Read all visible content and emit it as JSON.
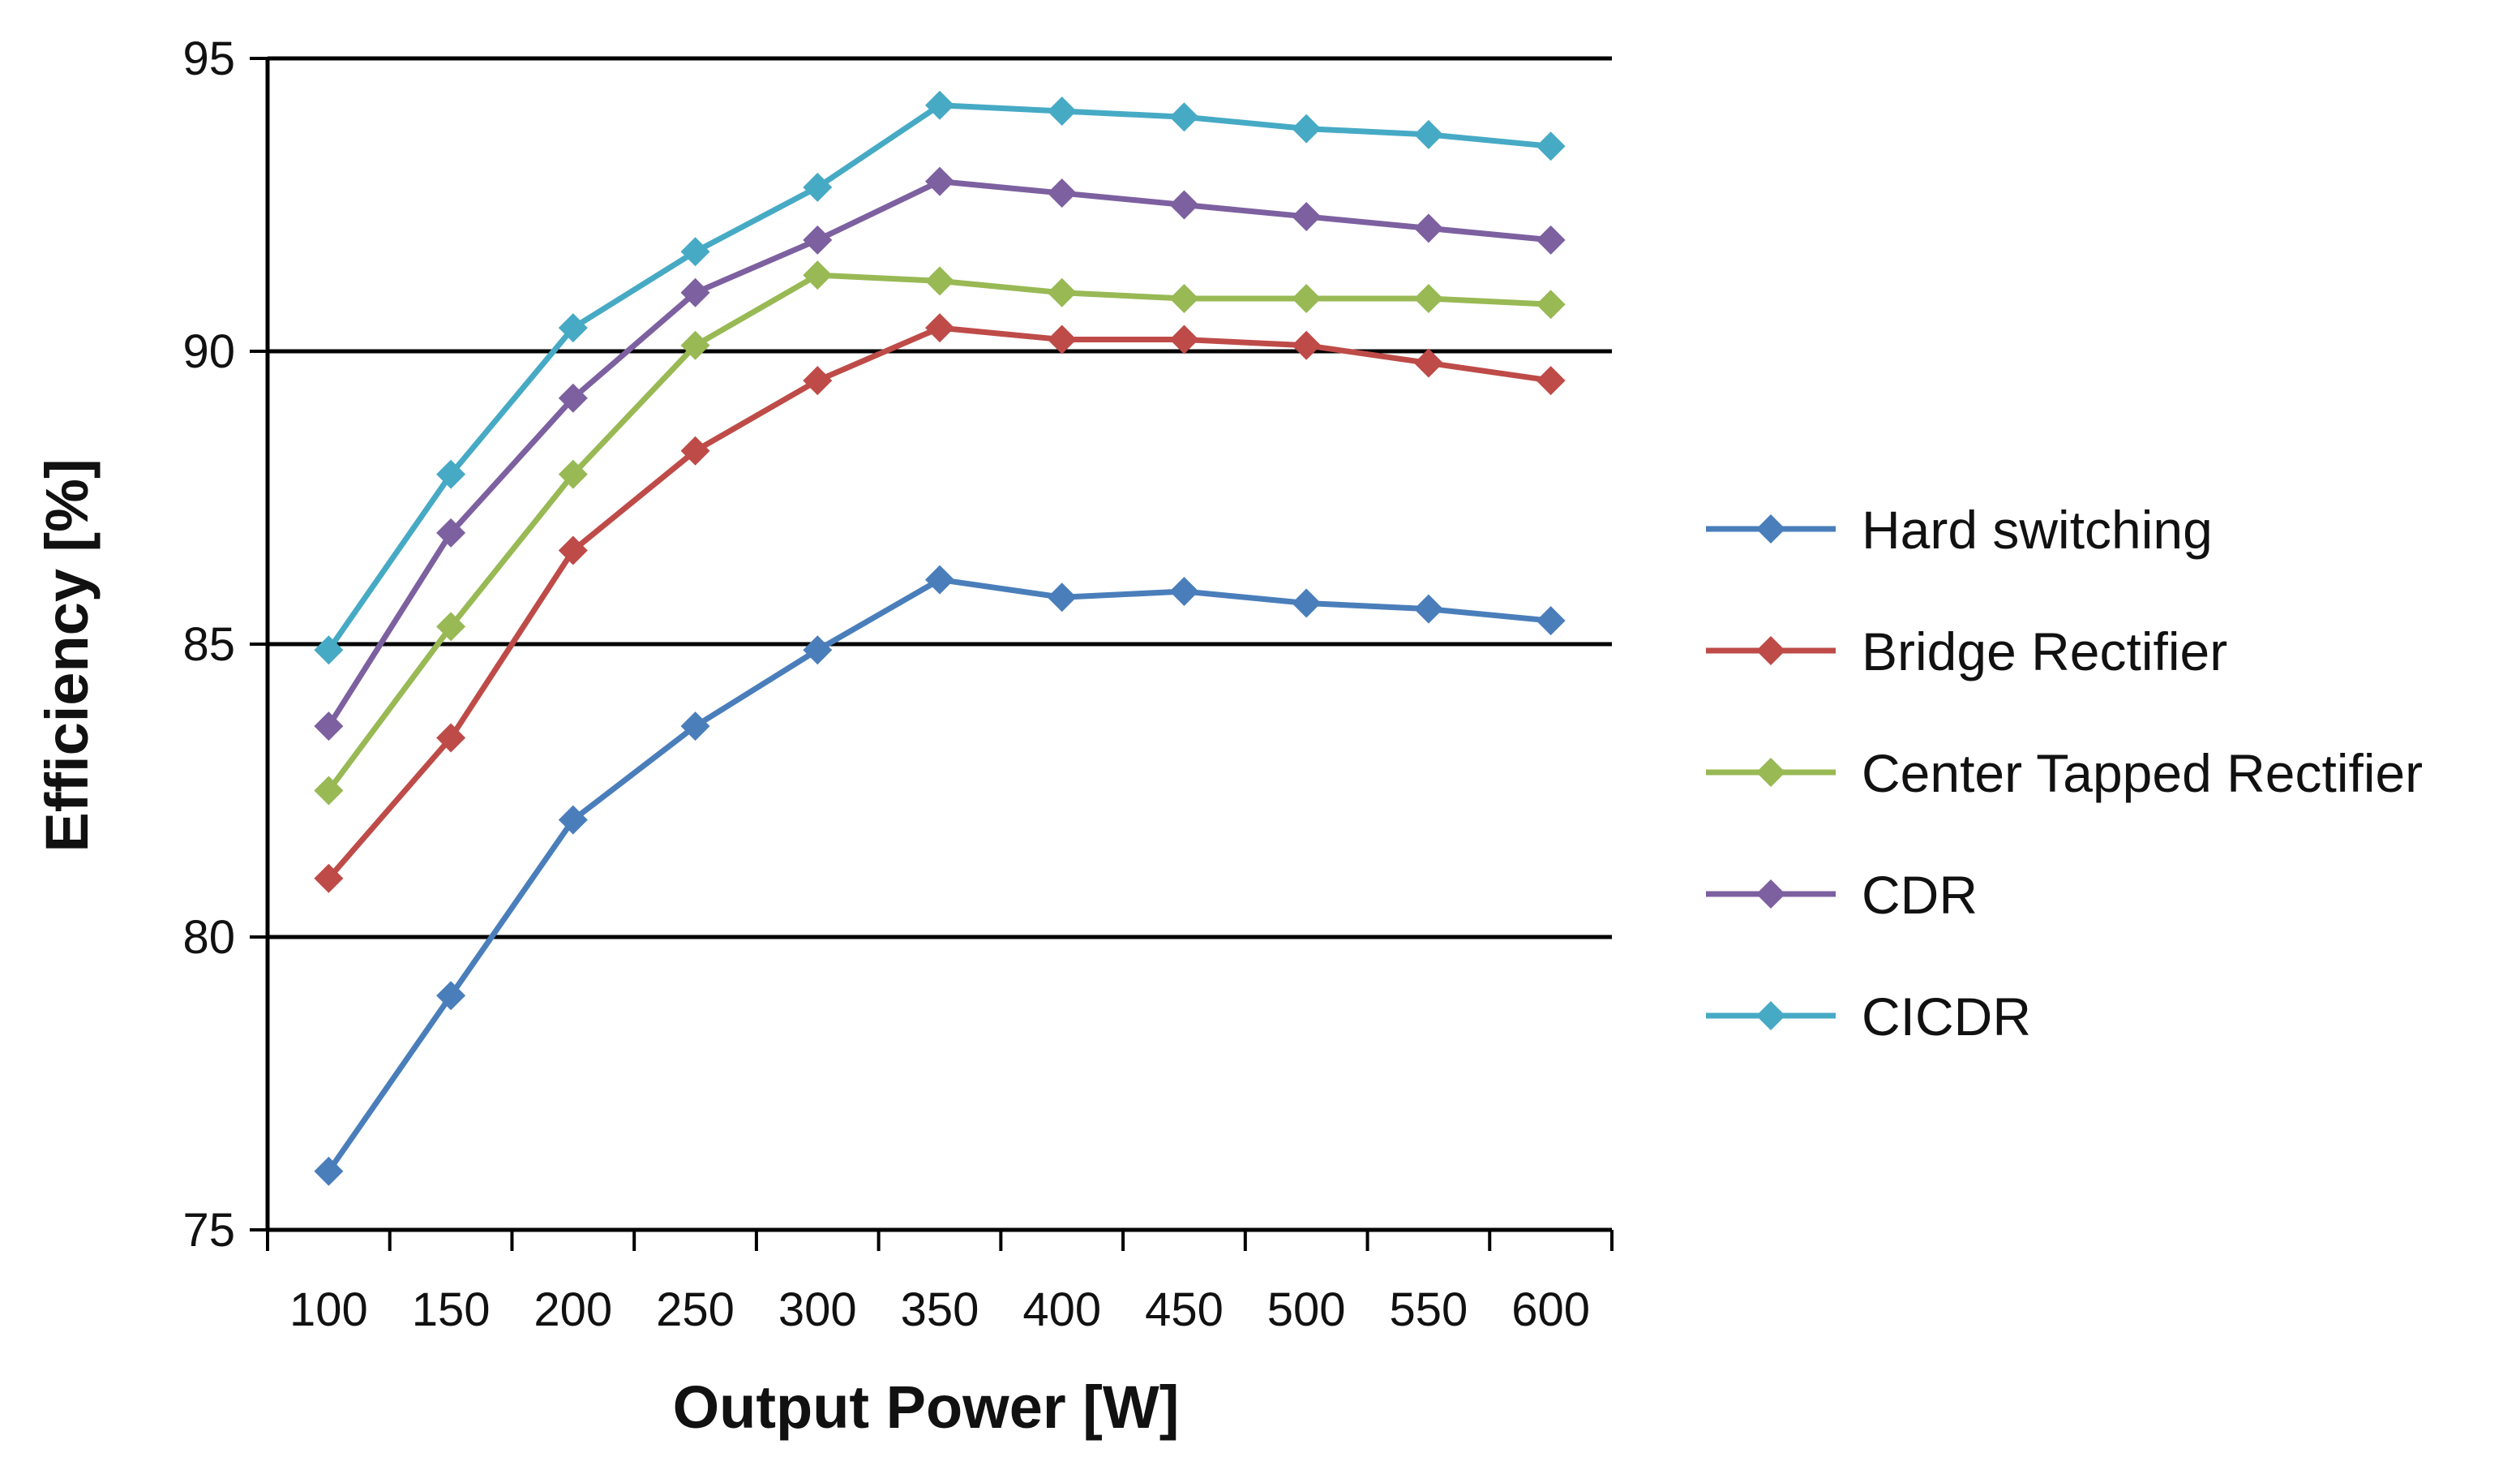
{
  "chart_data": {
    "type": "line",
    "title": "",
    "xlabel": "Output Power [W]",
    "ylabel": "Efficiency [%]",
    "categories": [
      "100",
      "150",
      "200",
      "250",
      "300",
      "350",
      "400",
      "450",
      "500",
      "550",
      "600"
    ],
    "ylim": [
      75,
      95
    ],
    "yticks": [
      "75",
      "80",
      "85",
      "90",
      "95"
    ],
    "grid": "horizontal",
    "legend_position": "right",
    "series": [
      {
        "name": "Hard switching",
        "color": "#4a7ebb",
        "values": [
          76.0,
          79.0,
          82.0,
          83.6,
          84.9,
          86.1,
          85.8,
          85.9,
          85.7,
          85.6,
          85.4
        ]
      },
      {
        "name": "Bridge Rectifier",
        "color": "#be4b48",
        "values": [
          81.0,
          83.4,
          86.6,
          88.3,
          89.5,
          90.4,
          90.2,
          90.2,
          90.1,
          89.8,
          89.5
        ]
      },
      {
        "name": "Center Tapped Rectifier",
        "color": "#98b954",
        "values": [
          82.5,
          85.3,
          87.9,
          90.1,
          91.3,
          91.2,
          91.0,
          90.9,
          90.9,
          90.9,
          90.8
        ]
      },
      {
        "name": "CDR",
        "color": "#7d60a0",
        "values": [
          83.6,
          86.9,
          89.2,
          91.0,
          91.9,
          92.9,
          92.7,
          92.5,
          92.3,
          92.1,
          91.9
        ]
      },
      {
        "name": "CICDR",
        "color": "#46aac5",
        "values": [
          84.9,
          87.9,
          90.4,
          91.7,
          92.8,
          94.2,
          94.1,
          94.0,
          93.8,
          93.7,
          93.5
        ]
      }
    ]
  }
}
